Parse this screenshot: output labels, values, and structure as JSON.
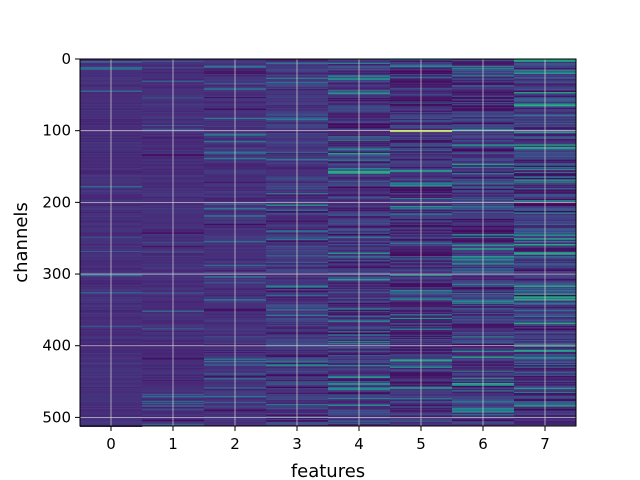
{
  "chart_data": {
    "type": "heatmap",
    "title": "",
    "xlabel": "features",
    "ylabel": "channels",
    "x_categories": [
      "0",
      "1",
      "2",
      "3",
      "4",
      "5",
      "6",
      "7"
    ],
    "y_ticks": [
      0,
      100,
      200,
      300,
      400,
      500
    ],
    "y_range": [
      0,
      512
    ],
    "y_inverted": true,
    "grid": true,
    "colormap": "viridis",
    "value_range": [
      0,
      1
    ],
    "notable_values": [
      {
        "feature": 5,
        "channel": 100,
        "value": 0.95
      },
      {
        "feature": 4,
        "channel": 157,
        "value": 0.75
      },
      {
        "feature": 7,
        "channel": 0,
        "value": 0.65
      },
      {
        "feature": 5,
        "channel": 420,
        "value": 0.7
      },
      {
        "feature": 6,
        "channel": 285,
        "value": 0.55
      },
      {
        "feature": 7,
        "channel": 245,
        "value": 0.6
      }
    ],
    "feature_mean_intensity": [
      0.16,
      0.16,
      0.17,
      0.2,
      0.2,
      0.17,
      0.22,
      0.23
    ],
    "feature_variation": [
      0.05,
      0.05,
      0.07,
      0.12,
      0.15,
      0.16,
      0.15,
      0.17
    ]
  },
  "colors": {
    "background": "#ffffff",
    "grid": "#d9d9d9",
    "base_cell": "#3b4f8a"
  }
}
